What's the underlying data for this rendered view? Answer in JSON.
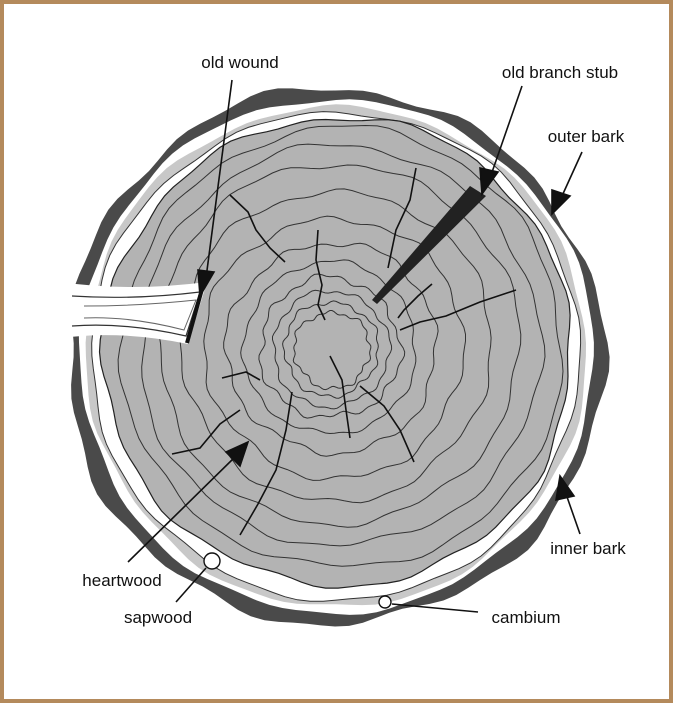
{
  "labels": [
    "old wound",
    "old branch stub",
    "outer bark",
    "inner bark",
    "heartwood",
    "sapwood",
    "cambium"
  ]
}
